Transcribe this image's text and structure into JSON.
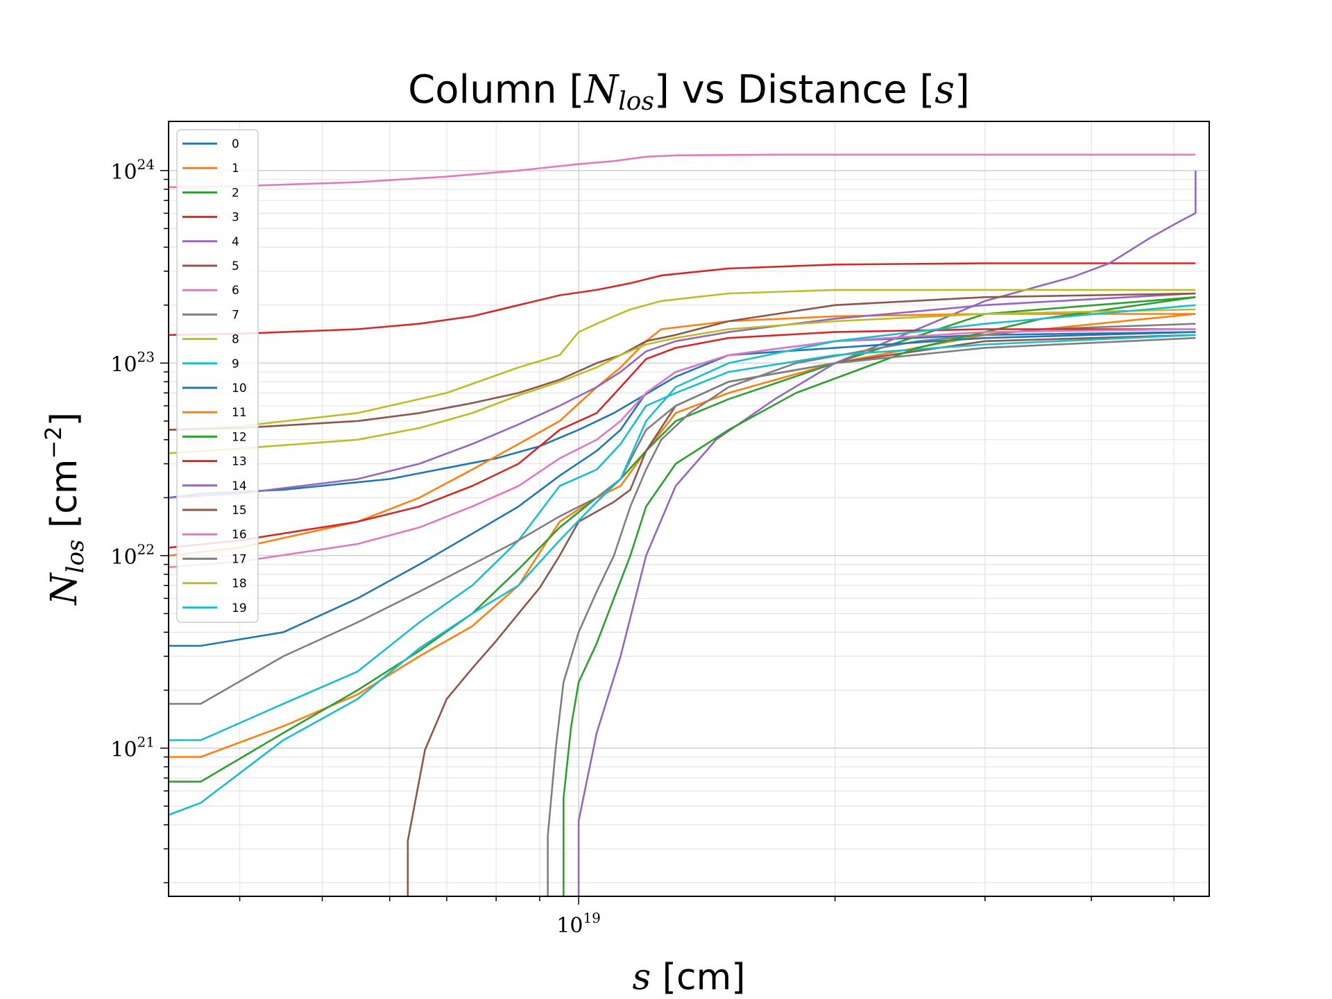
{
  "chart_data": {
    "type": "line",
    "title": "Column [N_los] vs Distance [s]",
    "xlabel": "s [cm]",
    "ylabel": "N_los [cm^-2]",
    "xscale": "log",
    "yscale": "log",
    "xlim": [
      3.3e+18,
      5.5e+19
    ],
    "ylim": [
      1.7e+20,
      1.8e+24
    ],
    "x_ticks": [
      {
        "value": 1e+19,
        "label": "10^19"
      }
    ],
    "y_ticks": [
      {
        "value": 1e+21,
        "label": "10^21"
      },
      {
        "value": 1e+22,
        "label": "10^22"
      },
      {
        "value": 1e+23,
        "label": "10^23"
      },
      {
        "value": 1e+24,
        "label": "10^24"
      }
    ],
    "grid": true,
    "legend": "upper-left",
    "series": [
      {
        "name": "0",
        "color": "#1f77b4",
        "x": [
          3.3e+18,
          3.6e+18,
          4.5e+18,
          6e+18,
          8e+18,
          9e+18,
          1e+19,
          1.1e+19,
          1.3e+19,
          1.5e+19,
          2e+19,
          3e+19,
          5.3e+19
        ],
        "y": [
          2e+22,
          2.1e+22,
          2.2e+22,
          2.5e+22,
          3.2e+22,
          3.7e+22,
          4.5e+22,
          5.5e+22,
          8.5e+22,
          1.1e+23,
          1.3e+23,
          1.4e+23,
          1.45e+23
        ]
      },
      {
        "name": "1",
        "color": "#ff7f0e",
        "x": [
          3.3e+18,
          3.6e+18,
          4.5e+18,
          5.5e+18,
          6.5e+18,
          7.5e+18,
          8.5e+18,
          9.5e+18,
          1.05e+19,
          1.12e+19,
          1.2e+19,
          1.3e+19,
          1.5e+19,
          2e+19,
          3e+19,
          5.3e+19
        ],
        "y": [
          9e+20,
          9e+20,
          1.3e+21,
          1.9e+21,
          3e+21,
          4.3e+21,
          7e+21,
          1.5e+22,
          2e+22,
          2.3e+22,
          3.5e+22,
          5.5e+22,
          7e+22,
          1e+23,
          1.4e+23,
          1.8e+23
        ]
      },
      {
        "name": "2",
        "color": "#2ca02c",
        "x": [
          3.3e+18,
          3.6e+18,
          4.5e+18,
          5.5e+18,
          6.5e+18,
          7.5e+18,
          8.5e+18,
          9.5e+18,
          1.05e+19,
          1.12e+19,
          1.2e+19,
          1.3e+19,
          1.5e+19,
          2e+19,
          3e+19,
          5.3e+19
        ],
        "y": [
          6.7e+20,
          6.7e+20,
          1.2e+21,
          2e+21,
          3.2e+21,
          5e+21,
          8.5e+21,
          1.4e+22,
          2e+22,
          2.5e+22,
          3.5e+22,
          5e+22,
          6.5e+22,
          1e+23,
          1.8e+23,
          2.2e+23
        ]
      },
      {
        "name": "3",
        "color": "#d62728",
        "x": [
          3.3e+18,
          4e+18,
          5.5e+18,
          6.5e+18,
          7.5e+18,
          8.5e+18,
          9.5e+18,
          1.05e+19,
          1.15e+19,
          1.25e+19,
          1.5e+19,
          2e+19,
          3e+19,
          5.3e+19
        ],
        "y": [
          1.4e+23,
          1.42e+23,
          1.5e+23,
          1.6e+23,
          1.75e+23,
          2e+23,
          2.25e+23,
          2.4e+23,
          2.6e+23,
          2.85e+23,
          3.1e+23,
          3.25e+23,
          3.3e+23,
          3.3e+23
        ]
      },
      {
        "name": "4",
        "color": "#9467bd",
        "x": [
          1e+19,
          1e+19,
          1.05e+19,
          1.12e+19,
          1.2e+19,
          1.3e+19,
          1.45e+19,
          1.7e+19,
          2e+19,
          2.5e+19,
          3e+19,
          3.8e+19,
          4.2e+19,
          4.7e+19,
          5.1e+19,
          5.3e+19,
          5.3e+19
        ],
        "y": [
          1.7e+20,
          4.2e+20,
          1.2e+21,
          3e+21,
          1e+22,
          2.3e+22,
          4e+22,
          6.5e+22,
          1e+23,
          1.5e+23,
          2.1e+23,
          2.8e+23,
          3.3e+23,
          4.5e+23,
          5.5e+23,
          6e+23,
          1e+24
        ]
      },
      {
        "name": "5",
        "color": "#8c564b",
        "x": [
          6.3e+18,
          6.3e+18,
          6.6e+18,
          7e+18,
          7.5e+18,
          8e+18,
          8.5e+18,
          9e+18,
          9.5e+18,
          1e+19,
          1.1e+19,
          1.15e+19,
          1.2e+19,
          1.3e+19,
          1.5e+19,
          2e+19,
          3e+19,
          5.3e+19
        ],
        "y": [
          1.7e+20,
          3.3e+20,
          9.8e+20,
          1.8e+21,
          2.6e+21,
          3.6e+21,
          5e+21,
          6.8e+21,
          1e+22,
          1.5e+22,
          1.9e+22,
          2.2e+22,
          3.5e+22,
          6e+22,
          8e+22,
          1e+23,
          1.3e+23,
          1.4e+23
        ]
      },
      {
        "name": "6",
        "color": "#e377c2",
        "x": [
          3.3e+18,
          4e+18,
          5.5e+18,
          7e+18,
          8.5e+18,
          1e+19,
          1.1e+19,
          1.2e+19,
          1.3e+19,
          1.7e+19,
          2.5e+19,
          5.3e+19
        ],
        "y": [
          8.2e+23,
          8.3e+23,
          8.7e+23,
          9.3e+23,
          1e+24,
          1.08e+24,
          1.12e+24,
          1.18e+24,
          1.2e+24,
          1.21e+24,
          1.21e+24,
          1.21e+24
        ]
      },
      {
        "name": "7",
        "color": "#7f7f7f",
        "x": [
          9.2e+18,
          9.2e+18,
          9.4e+18,
          9.6e+18,
          1e+19,
          1.05e+19,
          1.1e+19,
          1.15e+19,
          1.2e+19,
          1.25e+19,
          1.35e+19,
          1.5e+19,
          1.8e+19,
          2.5e+19,
          3.5e+19,
          5.3e+19
        ],
        "y": [
          1.7e+20,
          3.5e+20,
          1e+21,
          2.2e+21,
          4e+21,
          6.5e+21,
          1e+22,
          1.8e+22,
          2.8e+22,
          4e+22,
          5.5e+22,
          7.5e+22,
          1e+23,
          1.3e+23,
          1.5e+23,
          1.6e+23
        ]
      },
      {
        "name": "8",
        "color": "#bcbd22",
        "x": [
          3.3e+18,
          4e+18,
          5.5e+18,
          7e+18,
          8.5e+18,
          9.5e+18,
          1e+19,
          1.05e+19,
          1.1e+19,
          1.15e+19,
          1.25e+19,
          1.5e+19,
          2e+19,
          3e+19,
          5.3e+19
        ],
        "y": [
          4.5e+22,
          4.7e+22,
          5.5e+22,
          7e+22,
          9.5e+22,
          1.1e+23,
          1.45e+23,
          1.6e+23,
          1.75e+23,
          1.9e+23,
          2.1e+23,
          2.3e+23,
          2.4e+23,
          2.4e+23,
          2.4e+23
        ]
      },
      {
        "name": "9",
        "color": "#17becf",
        "x": [
          3.3e+18,
          3.6e+18,
          4.5e+18,
          5.5e+18,
          6.5e+18,
          7.5e+18,
          8.5e+18,
          9.5e+18,
          1.05e+19,
          1.12e+19,
          1.2e+19,
          1.3e+19,
          1.5e+19,
          2e+19,
          3e+19,
          5.3e+19
        ],
        "y": [
          1.1e+21,
          1.1e+21,
          1.7e+21,
          2.5e+21,
          4.5e+21,
          7e+21,
          1.2e+22,
          2.3e+22,
          2.8e+22,
          3.8e+22,
          6e+22,
          7e+22,
          9e+22,
          1.1e+23,
          1.25e+23,
          1.4e+23
        ]
      },
      {
        "name": "10",
        "color": "#1f77b4",
        "x": [
          3.3e+18,
          3.6e+18,
          4.5e+18,
          5.5e+18,
          6.5e+18,
          7.5e+18,
          8.5e+18,
          9.5e+18,
          1.05e+19,
          1.12e+19,
          1.2e+19,
          1.3e+19,
          1.5e+19,
          2e+19,
          3e+19,
          5.3e+19
        ],
        "y": [
          3.4e+21,
          3.4e+21,
          4e+21,
          6e+21,
          9e+21,
          1.3e+22,
          1.8e+22,
          2.6e+22,
          3.5e+22,
          4.5e+22,
          7e+22,
          9e+22,
          1.1e+23,
          1.2e+23,
          1.35e+23,
          1.45e+23
        ]
      },
      {
        "name": "11",
        "color": "#ff7f0e",
        "x": [
          3.3e+18,
          4e+18,
          5.5e+18,
          6.5e+18,
          7.5e+18,
          8.5e+18,
          9.5e+18,
          1.05e+19,
          1.12e+19,
          1.2e+19,
          1.25e+19,
          1.5e+19,
          2e+19,
          3e+19,
          5.3e+19
        ],
        "y": [
          1e+22,
          1.1e+22,
          1.5e+22,
          2e+22,
          2.8e+22,
          3.8e+22,
          5e+22,
          7.5e+22,
          9.5e+22,
          1.3e+23,
          1.5e+23,
          1.65e+23,
          1.75e+23,
          1.8e+23,
          1.8e+23
        ]
      },
      {
        "name": "12",
        "color": "#2ca02c",
        "x": [
          9.6e+18,
          9.6e+18,
          9.8e+18,
          1e+19,
          1.05e+19,
          1.1e+19,
          1.15e+19,
          1.2e+19,
          1.3e+19,
          1.5e+19,
          1.8e+19,
          2.5e+19,
          3.5e+19,
          5.3e+19
        ],
        "y": [
          1.7e+20,
          5.5e+20,
          1.3e+21,
          2.2e+21,
          3.5e+21,
          6e+21,
          1e+22,
          1.8e+22,
          3e+22,
          4.5e+22,
          7e+22,
          1.2e+23,
          1.7e+23,
          2.2e+23
        ]
      },
      {
        "name": "13",
        "color": "#d62728",
        "x": [
          3.3e+18,
          4e+18,
          5.5e+18,
          6.5e+18,
          7.5e+18,
          8.5e+18,
          9.5e+18,
          1.05e+19,
          1.12e+19,
          1.2e+19,
          1.3e+19,
          1.5e+19,
          2e+19,
          3e+19,
          5.3e+19
        ],
        "y": [
          1.1e+22,
          1.2e+22,
          1.5e+22,
          1.8e+22,
          2.3e+22,
          3e+22,
          4.5e+22,
          5.5e+22,
          7.5e+22,
          1.05e+23,
          1.2e+23,
          1.35e+23,
          1.45e+23,
          1.5e+23,
          1.5e+23
        ]
      },
      {
        "name": "14",
        "color": "#9467bd",
        "x": [
          3.3e+18,
          4e+18,
          5.5e+18,
          6.5e+18,
          7.5e+18,
          8.5e+18,
          9.5e+18,
          1.05e+19,
          1.12e+19,
          1.2e+19,
          1.3e+19,
          1.5e+19,
          2e+19,
          3e+19,
          5.3e+19
        ],
        "y": [
          2e+22,
          2.1e+22,
          2.5e+22,
          3e+22,
          3.8e+22,
          4.8e+22,
          6e+22,
          7.5e+22,
          9e+22,
          1.15e+23,
          1.3e+23,
          1.45e+23,
          1.7e+23,
          2e+23,
          2.3e+23
        ]
      },
      {
        "name": "15",
        "color": "#8c564b",
        "x": [
          3.3e+18,
          4e+18,
          5.5e+18,
          6.5e+18,
          7.5e+18,
          8.5e+18,
          9.5e+18,
          1.05e+19,
          1.12e+19,
          1.2e+19,
          1.3e+19,
          1.5e+19,
          2e+19,
          3e+19,
          5.3e+19
        ],
        "y": [
          4.5e+22,
          4.6e+22,
          5e+22,
          5.5e+22,
          6.2e+22,
          7e+22,
          8.2e+22,
          1e+23,
          1.1e+23,
          1.3e+23,
          1.4e+23,
          1.65e+23,
          2e+23,
          2.2e+23,
          2.3e+23
        ]
      },
      {
        "name": "16",
        "color": "#e377c2",
        "x": [
          3.3e+18,
          4e+18,
          5.5e+18,
          6.5e+18,
          7.5e+18,
          8.5e+18,
          9.5e+18,
          1.05e+19,
          1.12e+19,
          1.2e+19,
          1.3e+19,
          1.5e+19,
          2e+19,
          3e+19,
          5.3e+19
        ],
        "y": [
          8.7e+21,
          9.3e+21,
          1.15e+22,
          1.4e+22,
          1.8e+22,
          2.3e+22,
          3.2e+22,
          4e+22,
          5e+22,
          7e+22,
          9e+22,
          1.1e+23,
          1.3e+23,
          1.45e+23,
          1.5e+23
        ]
      },
      {
        "name": "17",
        "color": "#7f7f7f",
        "x": [
          3.3e+18,
          3.6e+18,
          4.5e+18,
          5.5e+18,
          6.5e+18,
          7.5e+18,
          8.5e+18,
          9.5e+18,
          1.05e+19,
          1.12e+19,
          1.2e+19,
          1.3e+19,
          1.5e+19,
          2e+19,
          3e+19,
          5.3e+19
        ],
        "y": [
          1.7e+21,
          1.7e+21,
          3e+21,
          4.5e+21,
          6.5e+21,
          9e+21,
          1.2e+22,
          1.6e+22,
          2e+22,
          2.5e+22,
          4.5e+22,
          6e+22,
          8e+22,
          1e+23,
          1.2e+23,
          1.35e+23
        ]
      },
      {
        "name": "18",
        "color": "#bcbd22",
        "x": [
          3.3e+18,
          4e+18,
          5.5e+18,
          6.5e+18,
          7.5e+18,
          8.5e+18,
          9.5e+18,
          1.05e+19,
          1.12e+19,
          1.2e+19,
          1.3e+19,
          1.5e+19,
          2e+19,
          3e+19,
          5.3e+19
        ],
        "y": [
          3.4e+22,
          3.6e+22,
          4e+22,
          4.6e+22,
          5.5e+22,
          6.8e+22,
          8e+22,
          9.5e+22,
          1.1e+23,
          1.25e+23,
          1.35e+23,
          1.5e+23,
          1.65e+23,
          1.8e+23,
          1.9e+23
        ]
      },
      {
        "name": "19",
        "color": "#17becf",
        "x": [
          3.3e+18,
          3.6e+18,
          4.5e+18,
          5.5e+18,
          6.5e+18,
          7.5e+18,
          8.5e+18,
          9.5e+18,
          1.05e+19,
          1.12e+19,
          1.2e+19,
          1.3e+19,
          1.5e+19,
          2e+19,
          3e+19,
          5.3e+19
        ],
        "y": [
          4.5e+20,
          5.2e+20,
          1.1e+21,
          1.8e+21,
          3.3e+21,
          5e+21,
          7e+21,
          1.2e+22,
          1.9e+22,
          2.5e+22,
          5e+22,
          7.5e+22,
          1e+23,
          1.3e+23,
          1.6e+23,
          2e+23
        ]
      }
    ]
  }
}
